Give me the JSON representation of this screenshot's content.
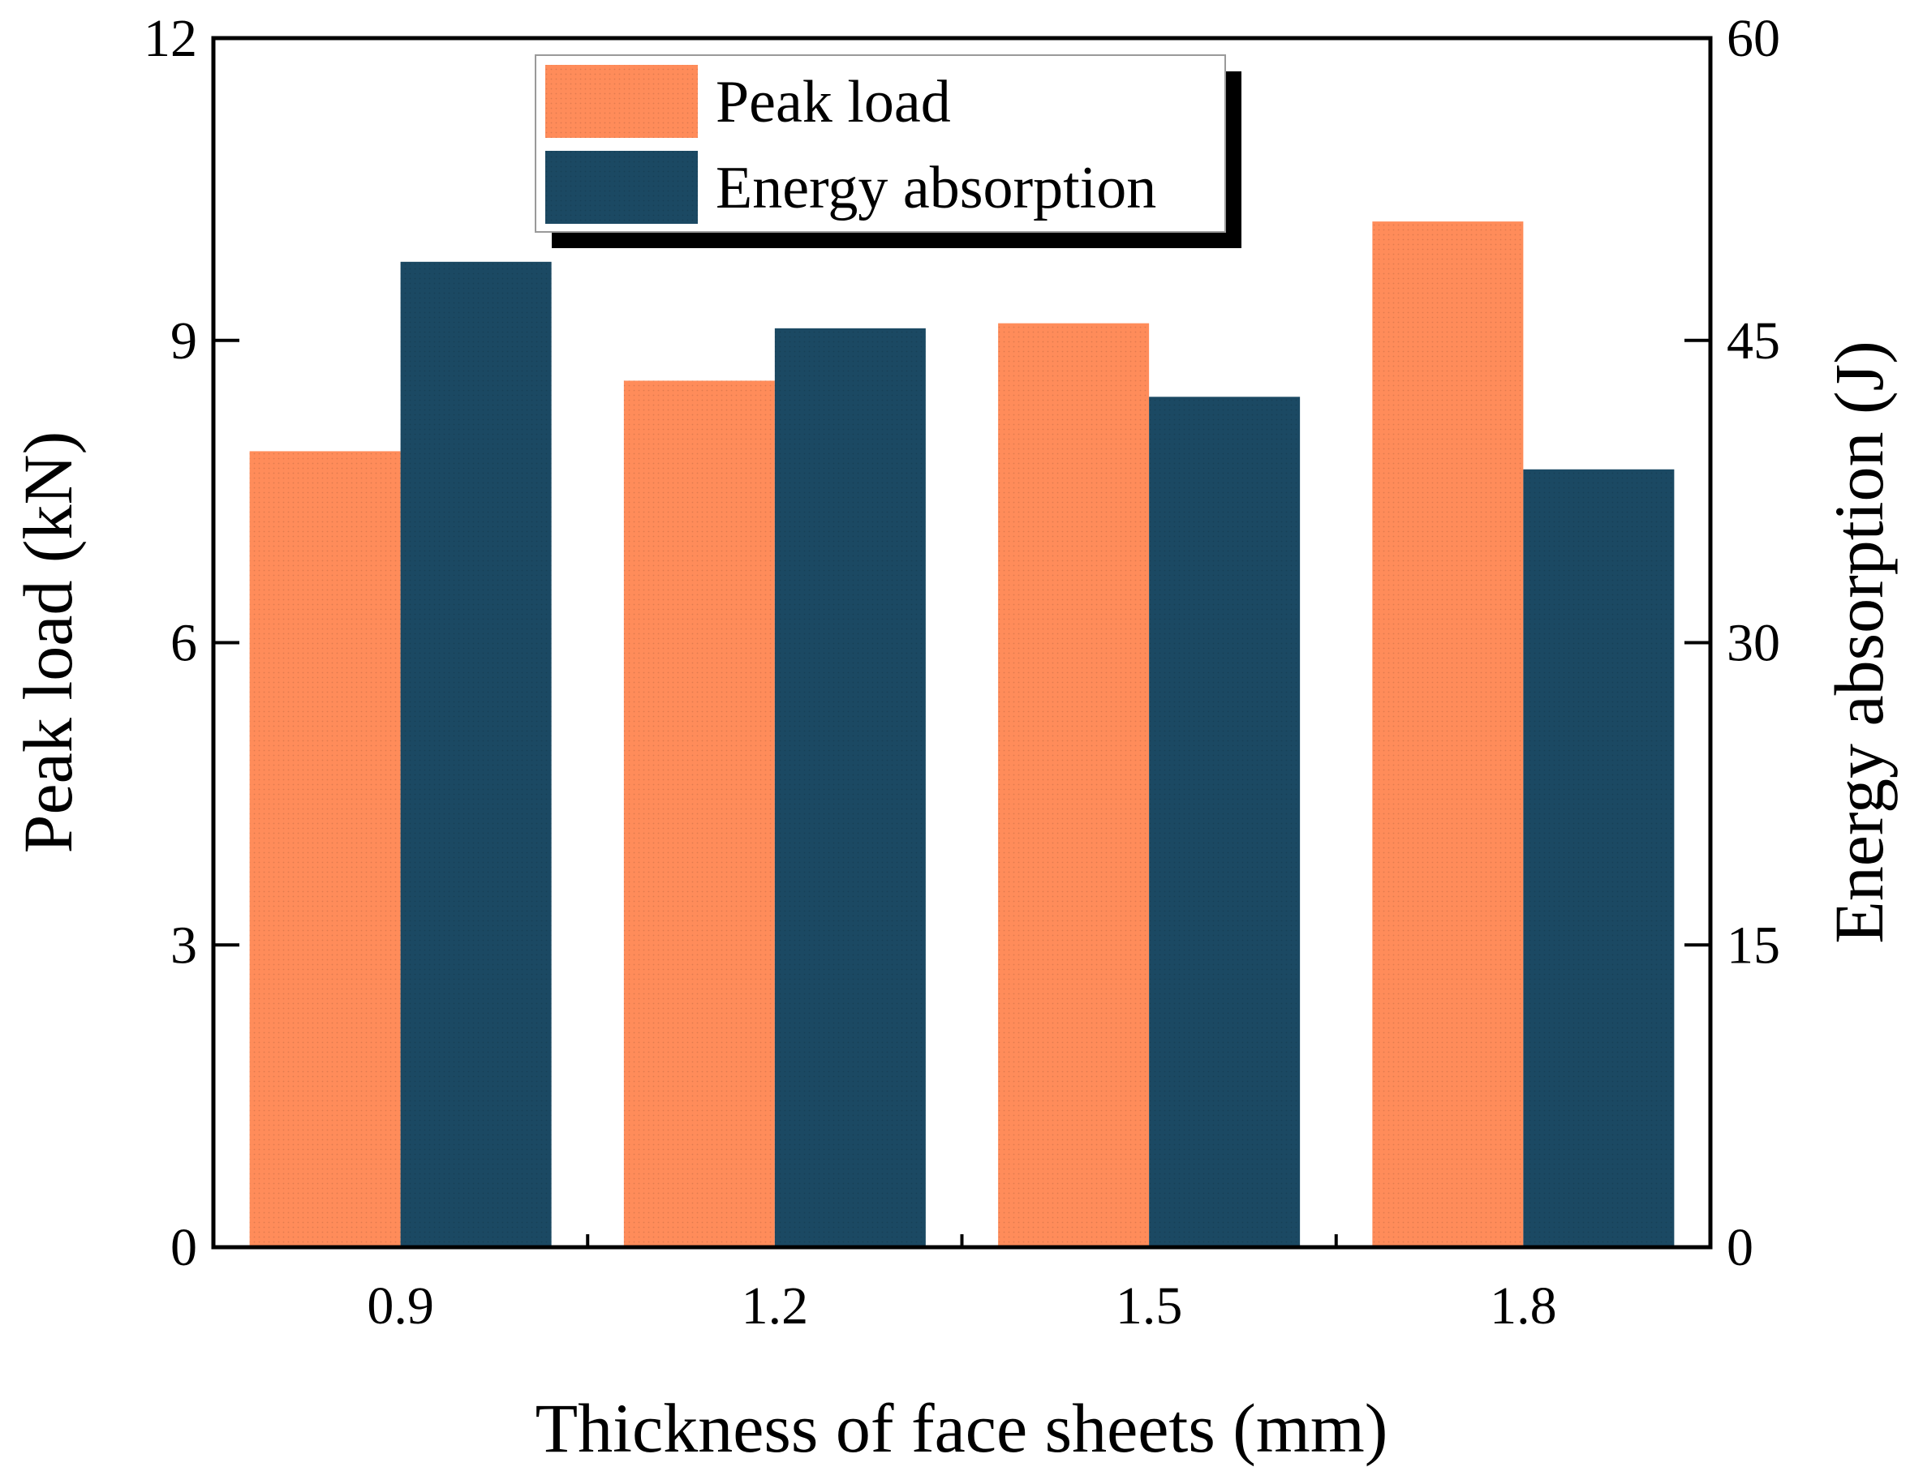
{
  "chart_data": {
    "type": "bar",
    "categories": [
      "0.9",
      "1.2",
      "1.5",
      "1.8"
    ],
    "series": [
      {
        "name": "Peak load",
        "axis": "left",
        "color": "#FF8C5A",
        "values": [
          7.9,
          8.6,
          9.17,
          10.18
        ]
      },
      {
        "name": "Energy absorption",
        "axis": "right",
        "color": "#1B4963",
        "values": [
          48.9,
          45.6,
          42.2,
          38.6
        ]
      }
    ],
    "xlabel": "Thickness of face sheets (mm)",
    "ylabel": "Peak load (kN)",
    "y2label": "Energy absorption (J)",
    "ylim": [
      0,
      12
    ],
    "y2lim": [
      0,
      60
    ],
    "yticks": [
      "0",
      "3",
      "6",
      "9",
      "12"
    ],
    "y2ticks": [
      "0",
      "15",
      "30",
      "45",
      "60"
    ],
    "legend_position": "top-center",
    "grid": false
  }
}
